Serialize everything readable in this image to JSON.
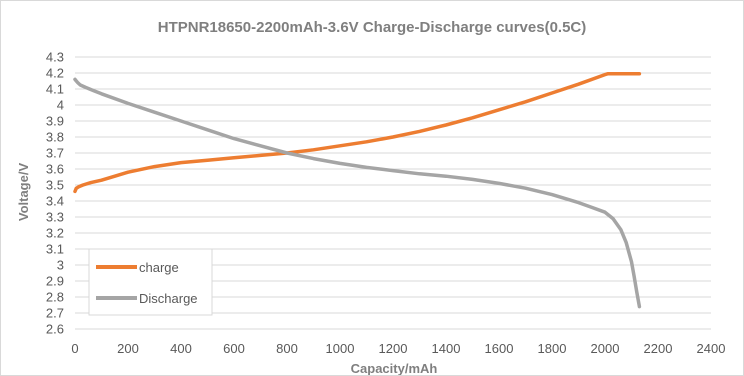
{
  "chart_data": {
    "type": "line",
    "title": "HTPNR18650-2200mAh-3.6V Charge-Discharge curves(0.5C)",
    "xlabel": "Capacity/mAh",
    "ylabel": "Voltage/V",
    "xlim": [
      0,
      2400
    ],
    "ylim": [
      2.6,
      4.3
    ],
    "xticks": [
      0,
      200,
      400,
      600,
      800,
      1000,
      1200,
      1400,
      1600,
      1800,
      2000,
      2200,
      2400
    ],
    "xtick_labels": [
      "0",
      "200",
      "400",
      "600",
      "800",
      "1000",
      "1200",
      "1400",
      "1600",
      "1800",
      "2000",
      "2200",
      "2400"
    ],
    "yticks": [
      2.6,
      2.7,
      2.8,
      2.9,
      3.0,
      3.1,
      3.2,
      3.3,
      3.4,
      3.5,
      3.6,
      3.7,
      3.8,
      3.9,
      4.0,
      4.1,
      4.2,
      4.3
    ],
    "ytick_labels": [
      "2.6",
      "2.7",
      "2.8",
      "2.9",
      "3",
      "3.1",
      "3.2",
      "3.3",
      "3.4",
      "3.5",
      "3.6",
      "3.7",
      "3.8",
      "3.9",
      "4",
      "4.1",
      "4.2",
      "4.3"
    ],
    "grid": true,
    "legend_position": "lower-left",
    "series": [
      {
        "name": "charge",
        "color": "#ed7d31",
        "x": [
          0,
          5,
          15,
          30,
          60,
          100,
          150,
          200,
          300,
          400,
          500,
          600,
          700,
          800,
          900,
          1000,
          1100,
          1200,
          1300,
          1400,
          1500,
          1600,
          1700,
          1800,
          1900,
          2000,
          2010,
          2050,
          2100,
          2130
        ],
        "y": [
          3.46,
          3.48,
          3.49,
          3.5,
          3.515,
          3.53,
          3.555,
          3.58,
          3.615,
          3.64,
          3.655,
          3.67,
          3.685,
          3.7,
          3.72,
          3.745,
          3.77,
          3.8,
          3.835,
          3.875,
          3.92,
          3.97,
          4.02,
          4.075,
          4.13,
          4.19,
          4.195,
          4.195,
          4.195,
          4.195
        ]
      },
      {
        "name": "Discharge",
        "color": "#a5a5a5",
        "x": [
          0,
          5,
          10,
          20,
          40,
          70,
          100,
          200,
          300,
          400,
          500,
          600,
          700,
          800,
          900,
          1000,
          1100,
          1200,
          1300,
          1400,
          1500,
          1600,
          1700,
          1800,
          1900,
          1950,
          2000,
          2030,
          2060,
          2080,
          2100,
          2110,
          2120,
          2130
        ],
        "y": [
          4.16,
          4.15,
          4.14,
          4.125,
          4.11,
          4.09,
          4.07,
          4.01,
          3.955,
          3.9,
          3.845,
          3.79,
          3.745,
          3.7,
          3.665,
          3.635,
          3.61,
          3.59,
          3.57,
          3.555,
          3.535,
          3.51,
          3.48,
          3.44,
          3.39,
          3.36,
          3.33,
          3.29,
          3.22,
          3.14,
          3.02,
          2.93,
          2.83,
          2.74
        ]
      }
    ]
  }
}
